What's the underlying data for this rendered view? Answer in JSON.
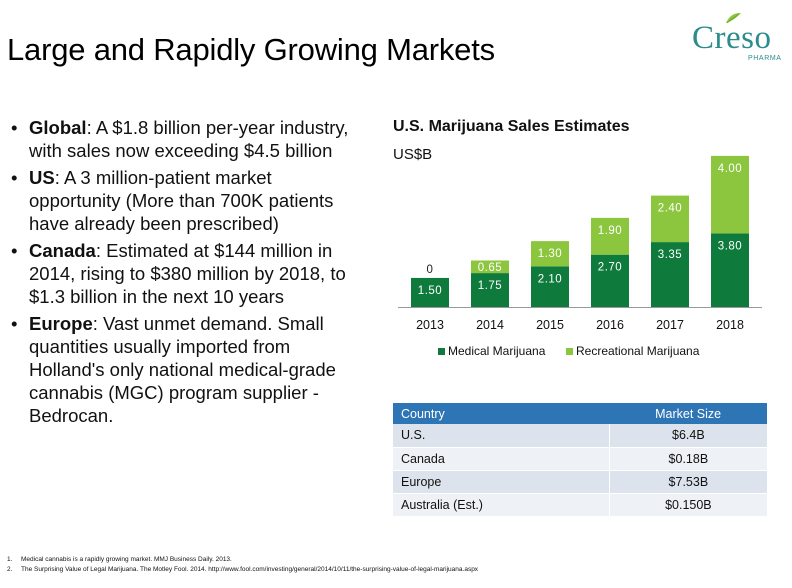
{
  "slide": {
    "title": "Large and Rapidly Growing Markets"
  },
  "logo": {
    "word": "Creso",
    "sub": "PHARMA"
  },
  "bullets": [
    {
      "bold": "Global",
      "text": ":  A $1.8 billion per-year industry, with sales now exceeding $4.5 billion"
    },
    {
      "bold": "US",
      "text": ":  A  3 million-patient market opportunity (More than 700K patients have already been prescribed)"
    },
    {
      "bold": "Canada",
      "text": ":  Estimated at $144 million in 2014, rising to $380 million by 2018, to $1.3 billion in the next 10 years"
    },
    {
      "bold": "Europe",
      "text": ": Vast unmet demand. Small quantities usually imported from Holland's only national medical-grade cannabis (MGC) program supplier - Bedrocan."
    }
  ],
  "chart_data": {
    "type": "bar",
    "stacked": true,
    "title": "U.S. Marijuana Sales Estimates",
    "unit": "US$B",
    "categories": [
      "2013",
      "2014",
      "2015",
      "2016",
      "2017",
      "2018"
    ],
    "series": [
      {
        "name": "Medical Marijuana",
        "color": "#0e7a3c",
        "values": [
          1.5,
          1.75,
          2.1,
          2.7,
          3.35,
          3.8
        ],
        "labels": [
          "1.50",
          "1.75",
          "2.10",
          "2.70",
          "3.35",
          "3.80"
        ]
      },
      {
        "name": "Recreational Marijuana",
        "color": "#8cc63f",
        "values": [
          0,
          0.65,
          1.3,
          1.9,
          2.4,
          4.0
        ],
        "labels": [
          "0",
          "0.65",
          "1.30",
          "1.90",
          "2.40",
          "4.00"
        ]
      }
    ],
    "ylim": [
      0,
      8
    ],
    "grid": false,
    "legend": "bottom"
  },
  "table": {
    "headers": [
      "Country",
      "Market Size"
    ],
    "rows": [
      [
        "U.S.",
        "$6.4B"
      ],
      [
        "Canada",
        "$0.18B"
      ],
      [
        "Europe",
        "$7.53B"
      ],
      [
        "Australia (Est.)",
        "$0.150B"
      ]
    ],
    "header_color": "#2e75b6"
  },
  "footnotes": [
    {
      "n": "1.",
      "text": "Medical cannabis is a rapidly growing market. MMJ Business Daily. 2013."
    },
    {
      "n": "2.",
      "text": "The Surprising Value of Legal Marijuana. The Motley Fool. 2014. http://www.fool.com/investing/general/2014/10/11/the-surprising-value-of-legal-marijuana.aspx"
    }
  ]
}
